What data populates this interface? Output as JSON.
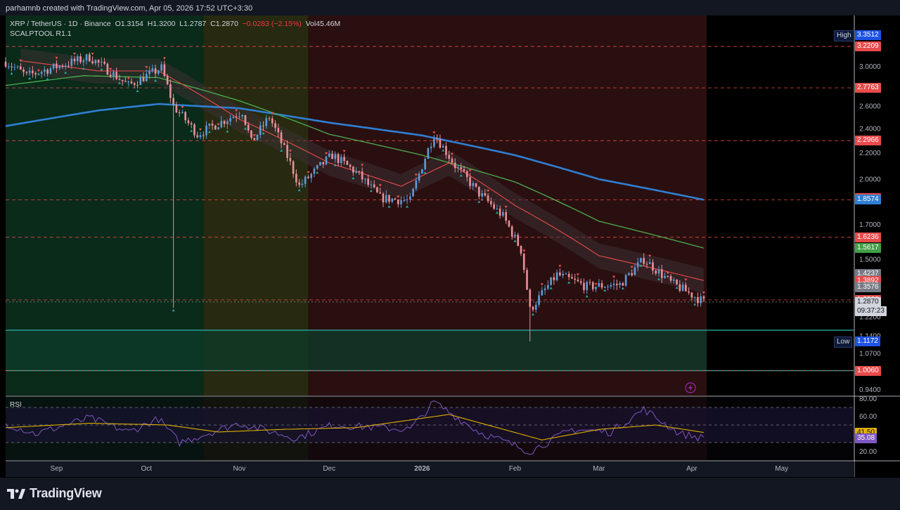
{
  "caption": "parhamnb created with TradingView.com, Apr 05, 2026 17:52 UTC+3:30",
  "brand": "TradingView",
  "legend": {
    "symbol": "XRP / TetherUS · 1D · Binance",
    "open": "O1.3154",
    "high": "H1.3200",
    "low": "L1.2787",
    "close": "C1.2870",
    "change": "−0.0283 (−2.15%)",
    "volume": "Vol45.46M",
    "indicator": "SCALPTOOL R1.1"
  },
  "rsi_title": "RSI",
  "colors": {
    "bull": "#5b9bd5",
    "bear": "#e8909a",
    "ema_red": "#e84b4b",
    "ema_green": "#4caf50",
    "ema_blue": "#2f7fd3",
    "rsi": "#7e57c2",
    "rsi_ma": "#e0b000",
    "support": "#26a69a",
    "level_dash": "#e84b4b"
  },
  "chart_data": [
    {
      "type": "candlestick",
      "title": "XRP / TetherUS · 1D · Binance",
      "x_ticks": [
        "Sep",
        "Oct",
        "Nov",
        "Dec",
        "2026",
        "Feb",
        "Mar",
        "Apr",
        "May"
      ],
      "x_range": [
        "2025-08-15",
        "2026-05-25"
      ],
      "y_scale": "log",
      "y_range": [
        0.92,
        3.6
      ],
      "y_ticks": [
        "3.0000",
        "2.6000",
        "2.4000",
        "2.2000",
        "2.0000",
        "1.7000",
        "1.5000",
        "1.2200",
        "1.1400",
        "1.0700",
        "0.9400"
      ],
      "price_tags": [
        {
          "label": "High",
          "value": "3.3512",
          "color": "#1e53e5"
        },
        {
          "value": "3.2209",
          "color": "#e84b4b"
        },
        {
          "value": "2.7763",
          "color": "#e84b4b"
        },
        {
          "value": "2.2966",
          "color": "#e84b4b"
        },
        {
          "value": "1.8674",
          "color": "#e84b4b"
        },
        {
          "value": "1.8574",
          "color": "#2f7fd3"
        },
        {
          "value": "1.6236",
          "color": "#e84b4b"
        },
        {
          "value": "1.5617",
          "color": "#43a047"
        },
        {
          "value": "1.4237",
          "color": "#787b86"
        },
        {
          "value": "1.3892",
          "color": "#e84b4b"
        },
        {
          "value": "1.3576",
          "color": "#787b86"
        },
        {
          "value": "1.2966",
          "color": "#e84b4b"
        },
        {
          "value": "1.2870",
          "countdown": "09:37:23",
          "color": "#d1d4dc"
        },
        {
          "label": "Low",
          "value": "1.1172",
          "color": "#1e53e5"
        },
        {
          "value": "1.0060",
          "color": "#e84b4b"
        }
      ],
      "levels": [
        3.2209,
        2.7763,
        2.2966,
        1.8574,
        1.6236,
        1.2966,
        1.006
      ],
      "support_zone": [
        1.006,
        1.163
      ],
      "regimes": [
        {
          "start": "2025-08-15",
          "end": "2025-10-20",
          "tone": "green"
        },
        {
          "start": "2025-10-20",
          "end": "2025-11-24",
          "tone": "olive"
        },
        {
          "start": "2025-11-24",
          "end": "2026-04-06",
          "tone": "red"
        }
      ],
      "anchors": [
        {
          "date": "2025-08-15",
          "price": 3.05
        },
        {
          "date": "2025-08-22",
          "price": 2.9
        },
        {
          "date": "2025-09-12",
          "price": 3.1
        },
        {
          "date": "2025-09-25",
          "price": 2.8
        },
        {
          "date": "2025-10-06",
          "price": 2.98
        },
        {
          "date": "2025-10-10",
          "price": 2.6
        },
        {
          "date": "2025-10-18",
          "price": 2.35
        },
        {
          "date": "2025-11-02",
          "price": 2.55
        },
        {
          "date": "2025-11-05",
          "price": 2.28
        },
        {
          "date": "2025-11-11",
          "price": 2.5
        },
        {
          "date": "2025-11-21",
          "price": 1.95
        },
        {
          "date": "2025-12-02",
          "price": 2.18
        },
        {
          "date": "2025-12-10",
          "price": 2.05
        },
        {
          "date": "2025-12-18",
          "price": 1.87
        },
        {
          "date": "2025-12-28",
          "price": 1.85
        },
        {
          "date": "2026-01-05",
          "price": 2.35
        },
        {
          "date": "2026-01-12",
          "price": 2.1
        },
        {
          "date": "2026-01-20",
          "price": 1.9
        },
        {
          "date": "2026-01-28",
          "price": 1.75
        },
        {
          "date": "2026-02-03",
          "price": 1.55
        },
        {
          "date": "2026-02-06",
          "price": 1.25
        },
        {
          "date": "2026-02-15",
          "price": 1.42
        },
        {
          "date": "2026-02-25",
          "price": 1.36
        },
        {
          "date": "2026-03-08",
          "price": 1.37
        },
        {
          "date": "2026-03-16",
          "price": 1.5
        },
        {
          "date": "2026-03-25",
          "price": 1.38
        },
        {
          "date": "2026-04-05",
          "price": 1.287
        }
      ],
      "spikes": [
        {
          "date": "2025-10-10",
          "low": 1.26
        },
        {
          "date": "2026-02-06",
          "low": 1.117
        }
      ],
      "ema_fast": [
        {
          "date": "2025-08-20",
          "price": 3.06
        },
        {
          "date": "2025-09-15",
          "price": 2.95
        },
        {
          "date": "2025-10-05",
          "price": 2.95
        },
        {
          "date": "2025-11-01",
          "price": 2.48
        },
        {
          "date": "2025-12-01",
          "price": 2.12
        },
        {
          "date": "2025-12-25",
          "price": 1.95
        },
        {
          "date": "2026-01-10",
          "price": 2.12
        },
        {
          "date": "2026-02-01",
          "price": 1.82
        },
        {
          "date": "2026-03-01",
          "price": 1.52
        },
        {
          "date": "2026-04-05",
          "price": 1.39
        }
      ],
      "ema_mid": [
        {
          "date": "2025-08-15",
          "price": 2.8
        },
        {
          "date": "2025-09-10",
          "price": 2.9
        },
        {
          "date": "2025-10-05",
          "price": 2.88
        },
        {
          "date": "2025-11-01",
          "price": 2.65
        },
        {
          "date": "2025-12-01",
          "price": 2.35
        },
        {
          "date": "2026-01-01",
          "price": 2.18
        },
        {
          "date": "2026-02-01",
          "price": 1.98
        },
        {
          "date": "2026-03-01",
          "price": 1.72
        },
        {
          "date": "2026-04-05",
          "price": 1.5617
        }
      ],
      "ema_slow": [
        {
          "date": "2025-08-15",
          "price": 2.42
        },
        {
          "date": "2025-09-15",
          "price": 2.56
        },
        {
          "date": "2025-10-05",
          "price": 2.62
        },
        {
          "date": "2025-11-01",
          "price": 2.58
        },
        {
          "date": "2025-12-01",
          "price": 2.45
        },
        {
          "date": "2026-01-01",
          "price": 2.34
        },
        {
          "date": "2026-02-01",
          "price": 2.18
        },
        {
          "date": "2026-03-01",
          "price": 2.0
        },
        {
          "date": "2026-04-05",
          "price": 1.8574
        }
      ]
    },
    {
      "type": "line",
      "title": "RSI",
      "y_range": [
        10,
        82
      ],
      "y_ticks": [
        "80.00",
        "60.00",
        "20.00"
      ],
      "bands": [
        70,
        50,
        30
      ],
      "rsi_value": "35.08",
      "rsi_ma_value": "41.50",
      "rsi_anchors": [
        {
          "date": "2025-08-15",
          "value": 52
        },
        {
          "date": "2025-08-25",
          "value": 40
        },
        {
          "date": "2025-09-12",
          "value": 58
        },
        {
          "date": "2025-09-25",
          "value": 42
        },
        {
          "date": "2025-10-05",
          "value": 57
        },
        {
          "date": "2025-10-12",
          "value": 30
        },
        {
          "date": "2025-11-01",
          "value": 52
        },
        {
          "date": "2025-11-20",
          "value": 35
        },
        {
          "date": "2025-12-02",
          "value": 50
        },
        {
          "date": "2025-12-28",
          "value": 45
        },
        {
          "date": "2026-01-05",
          "value": 76
        },
        {
          "date": "2026-01-20",
          "value": 42
        },
        {
          "date": "2026-02-06",
          "value": 20
        },
        {
          "date": "2026-02-20",
          "value": 45
        },
        {
          "date": "2026-03-05",
          "value": 42
        },
        {
          "date": "2026-03-16",
          "value": 68
        },
        {
          "date": "2026-03-28",
          "value": 40
        },
        {
          "date": "2026-04-05",
          "value": 35.08
        }
      ],
      "rsi_ma_anchors": [
        {
          "date": "2025-08-15",
          "value": 47
        },
        {
          "date": "2025-09-12",
          "value": 52
        },
        {
          "date": "2025-10-08",
          "value": 50
        },
        {
          "date": "2025-10-25",
          "value": 42
        },
        {
          "date": "2025-11-15",
          "value": 45
        },
        {
          "date": "2025-12-10",
          "value": 47
        },
        {
          "date": "2026-01-10",
          "value": 62
        },
        {
          "date": "2026-01-25",
          "value": 48
        },
        {
          "date": "2026-02-10",
          "value": 33
        },
        {
          "date": "2026-03-01",
          "value": 45
        },
        {
          "date": "2026-03-20",
          "value": 50
        },
        {
          "date": "2026-04-05",
          "value": 41.5
        }
      ]
    }
  ]
}
